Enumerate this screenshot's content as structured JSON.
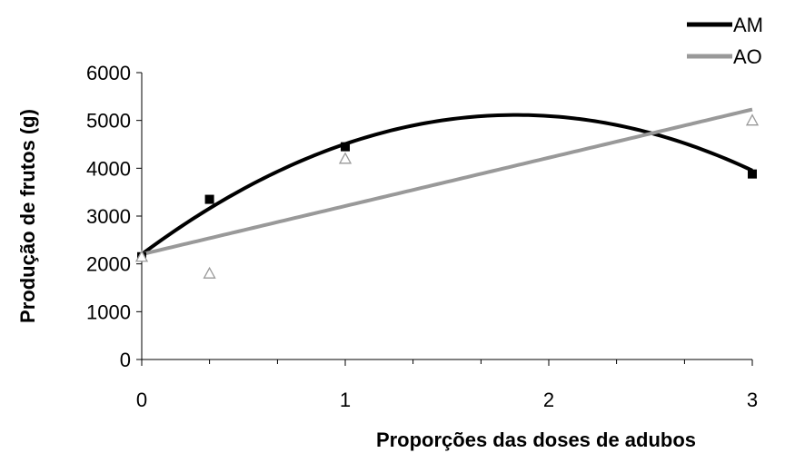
{
  "chart_data": {
    "type": "scatter",
    "xlabel": "Proporções das doses de adubos",
    "ylabel": "Produção de frutos (g)",
    "xlim": [
      0,
      3
    ],
    "ylim": [
      0,
      6000
    ],
    "x_ticks": [
      0,
      1,
      2,
      3
    ],
    "x_tick_labels": [
      "0",
      "1",
      "2",
      "3"
    ],
    "x_minor_ticks": [
      0.333,
      0.667,
      1.333,
      1.667,
      2.333,
      2.667
    ],
    "y_ticks": [
      0,
      1000,
      2000,
      3000,
      4000,
      5000,
      6000
    ],
    "y_tick_labels": [
      "0",
      "1000",
      "2000",
      "3000",
      "4000",
      "5000",
      "6000"
    ],
    "grid": false,
    "legend_position": "top-right",
    "series": [
      {
        "name": "AM",
        "color": "#000000",
        "marker": "filled-square",
        "points": [
          {
            "x": 0,
            "y": 2150
          },
          {
            "x": 0.333,
            "y": 3350
          },
          {
            "x": 1,
            "y": 4450
          },
          {
            "x": 3,
            "y": 3880
          }
        ],
        "trendline": {
          "type": "quadratic",
          "coefficients": [
            2200,
            3170,
            -862
          ]
        }
      },
      {
        "name": "AO",
        "color": "#999999",
        "marker": "open-triangle",
        "points": [
          {
            "x": 0,
            "y": 2150
          },
          {
            "x": 0.333,
            "y": 1800
          },
          {
            "x": 1,
            "y": 4200
          },
          {
            "x": 3,
            "y": 5000
          }
        ],
        "trendline": {
          "type": "linear",
          "coefficients": [
            2200,
            1010
          ]
        }
      }
    ]
  }
}
